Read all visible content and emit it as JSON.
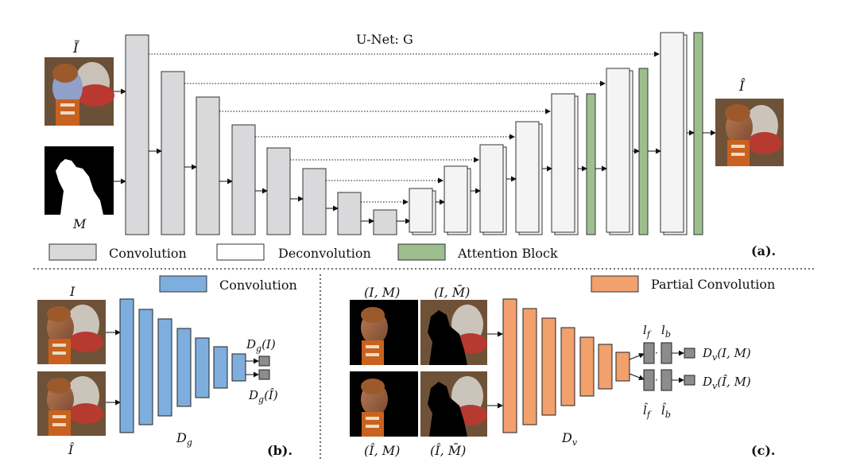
{
  "panel_a": {
    "title": "U-Net: G",
    "input_image_label": "Ĩ",
    "mask_label": "M",
    "output_label": "Î",
    "legend": {
      "convolution": "Convolution",
      "deconvolution": "Deconvolution",
      "attention": "Attention Block"
    },
    "tag": "(a)."
  },
  "panel_b": {
    "legend_convolution": "Convolution",
    "top_input_label": "I",
    "bottom_input_label": "Î",
    "network_label": "D_g",
    "output_top": "D_g(I)",
    "output_bottom": "D_g(Î)",
    "tag": "(b)."
  },
  "panel_c": {
    "legend_partial": "Partial Convolution",
    "top_left_label": "(I, M)",
    "top_right_label": "(I, M̄)",
    "bottom_left_label": "(Î, M)",
    "bottom_right_label": "(Î, M̄)",
    "network_label": "D_v",
    "feat_lf": "l_f",
    "feat_lb": "l_b",
    "feat_lf_hat": "l̂_f",
    "feat_lb_hat": "l̂_b",
    "output_top": "D_v(I, M)",
    "output_bottom": "D_v(Î, M)",
    "tag": "(c)."
  },
  "colors": {
    "conv_gray": "#d9d9dc",
    "deconv_white": "#f4f4f4",
    "attention_green": "#9dbf8f",
    "conv_blue": "#7eaedd",
    "partial_orange": "#f2a06c",
    "small_gray": "#8c8c8c"
  }
}
